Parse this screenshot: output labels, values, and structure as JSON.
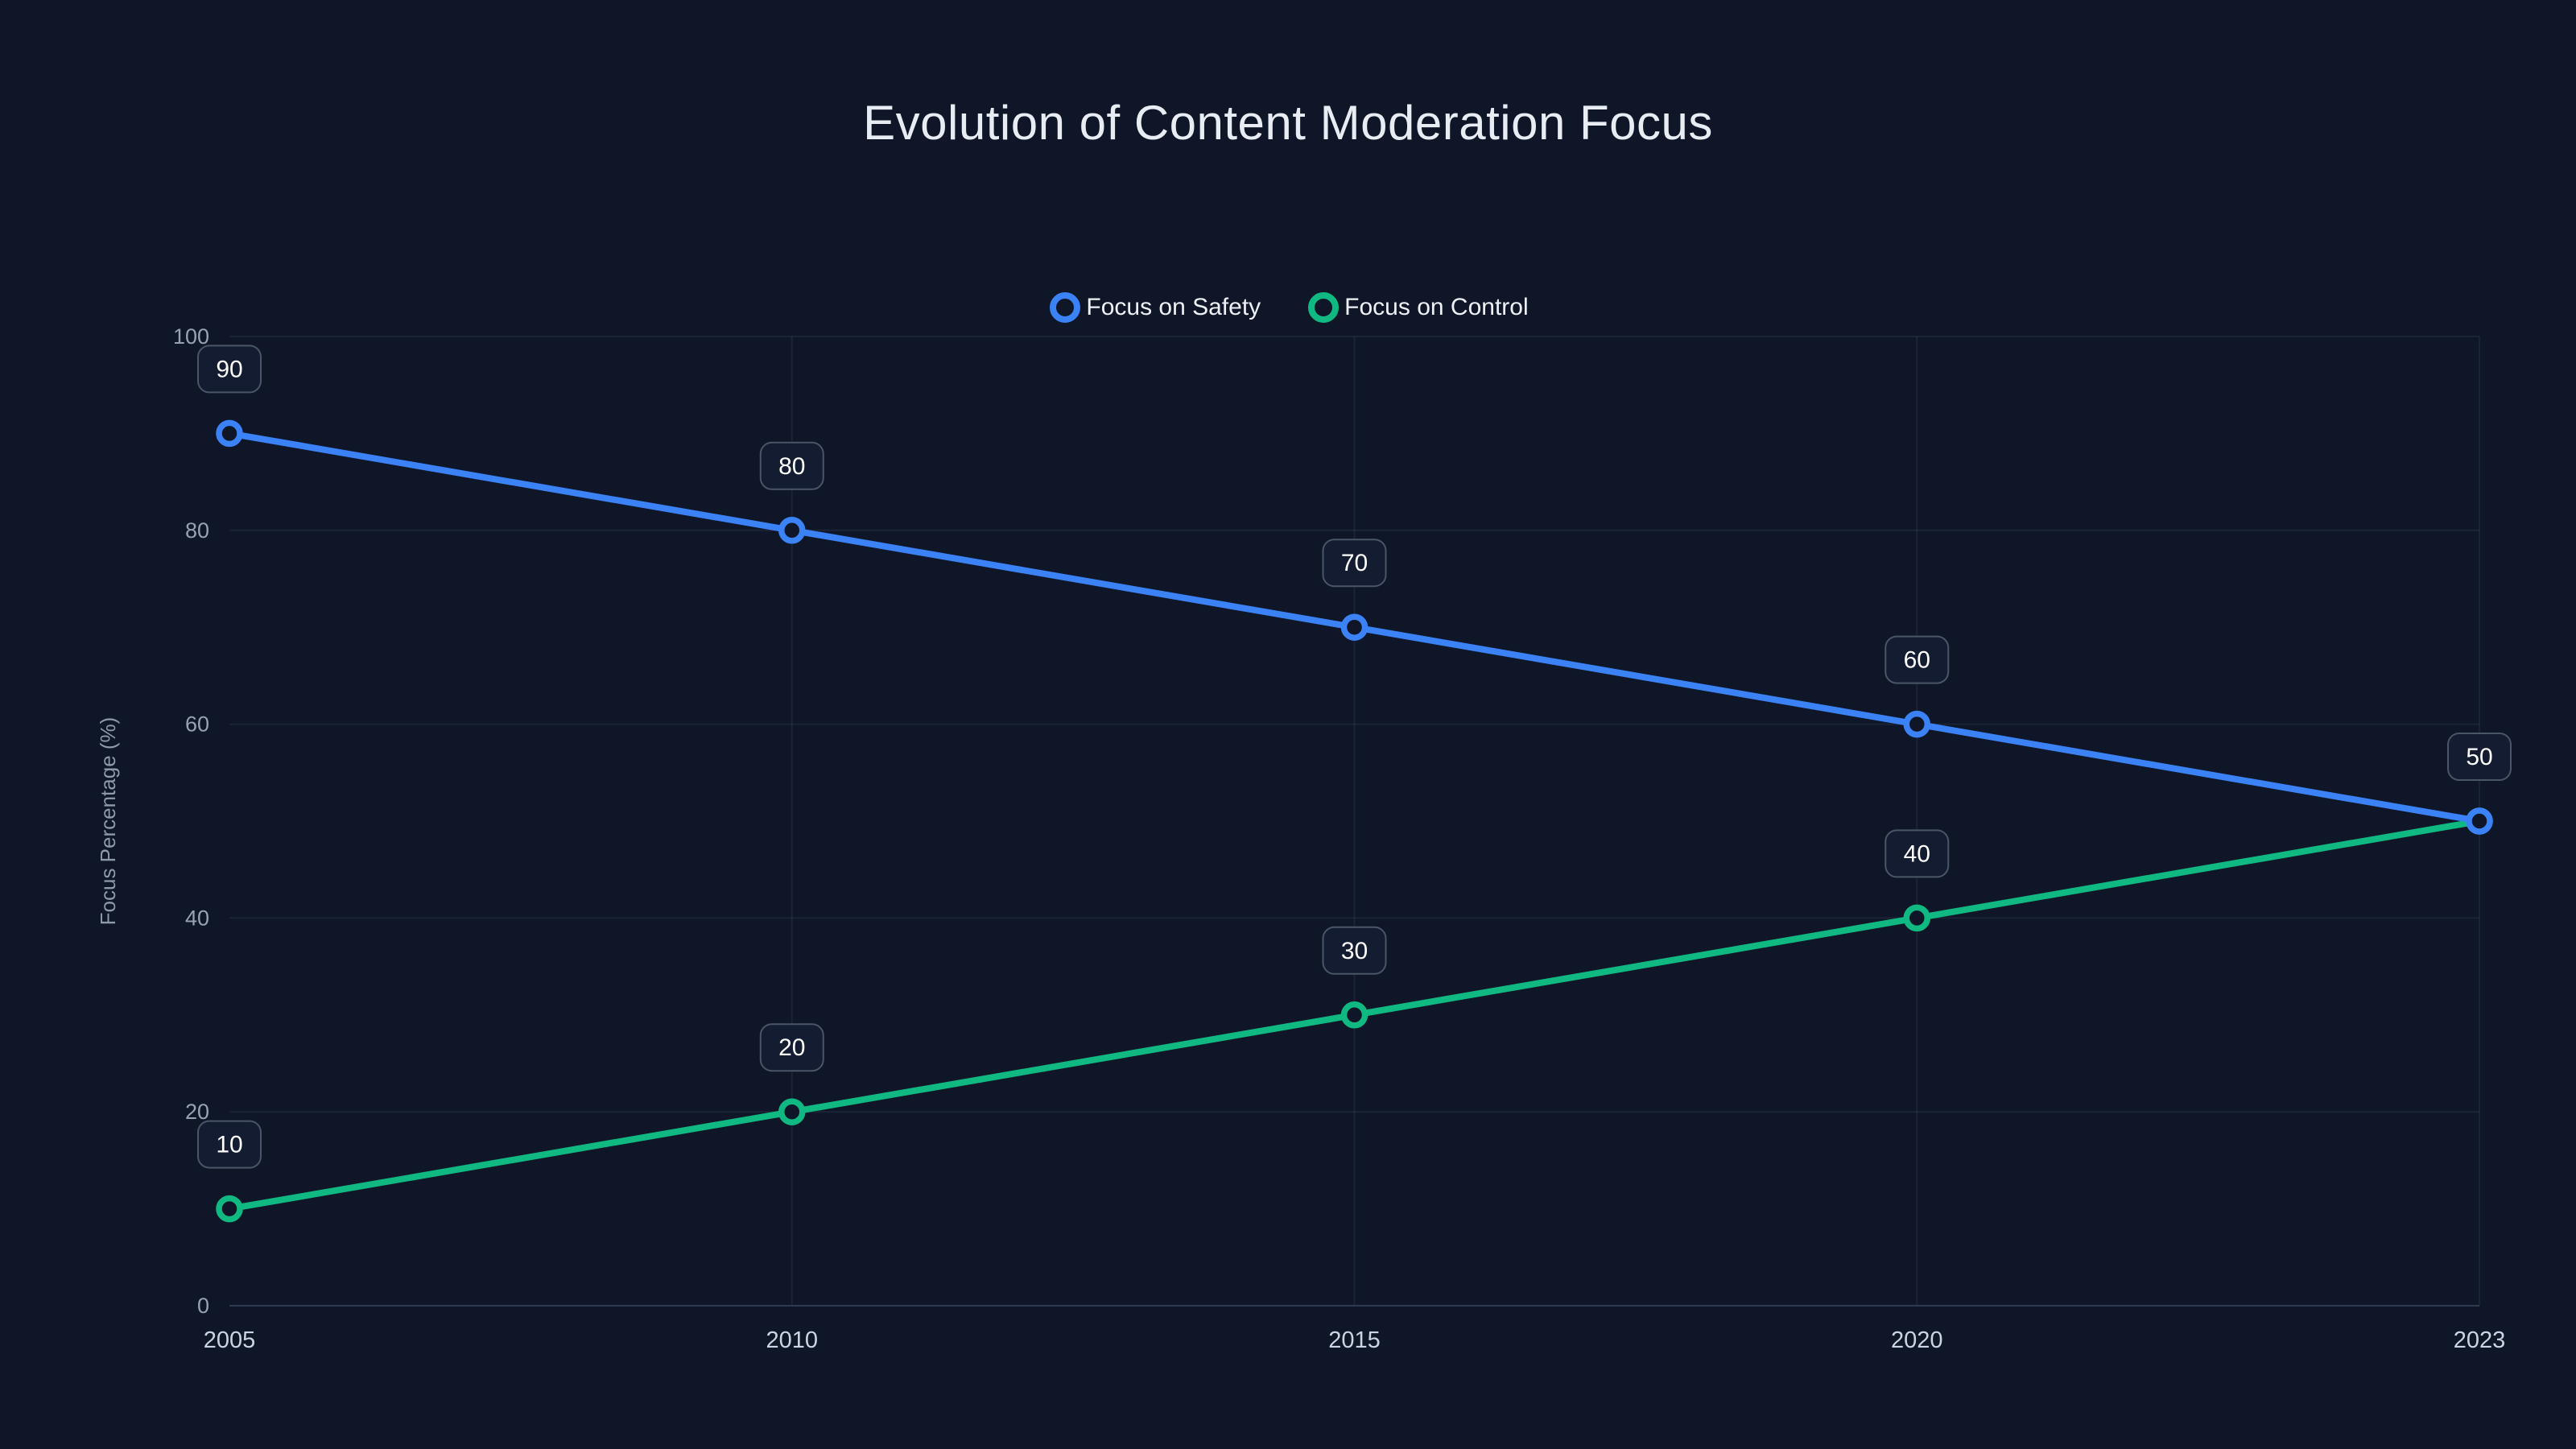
{
  "title": "Evolution of Content Moderation Focus",
  "chart_data": {
    "type": "line",
    "categories": [
      "2005",
      "2010",
      "2015",
      "2020",
      "2023"
    ],
    "series": [
      {
        "name": "Focus on Safety",
        "values": [
          90,
          80,
          70,
          60,
          50
        ],
        "color": "#3b82f6"
      },
      {
        "name": "Focus on Control",
        "values": [
          10,
          20,
          30,
          40,
          50
        ],
        "color": "#10b981"
      }
    ],
    "title": "Evolution of Content Moderation Focus",
    "xlabel": "",
    "ylabel": "Focus Percentage (%)",
    "ylim": [
      0,
      100
    ],
    "yticks": [
      0,
      20,
      40,
      60,
      80,
      100
    ],
    "grid": true,
    "legend_position": "top",
    "point_labels": true,
    "background": "#0e1627",
    "grid_color": "rgba(148,163,184,0.10)",
    "axis_line_color": "#2e3a52",
    "tick_color": "#98a2b3",
    "x_tick_color": "#cbd5e1",
    "label_box": {
      "fill": "#131c30",
      "border": "#4a5568",
      "text_color": "#ffffff"
    }
  }
}
